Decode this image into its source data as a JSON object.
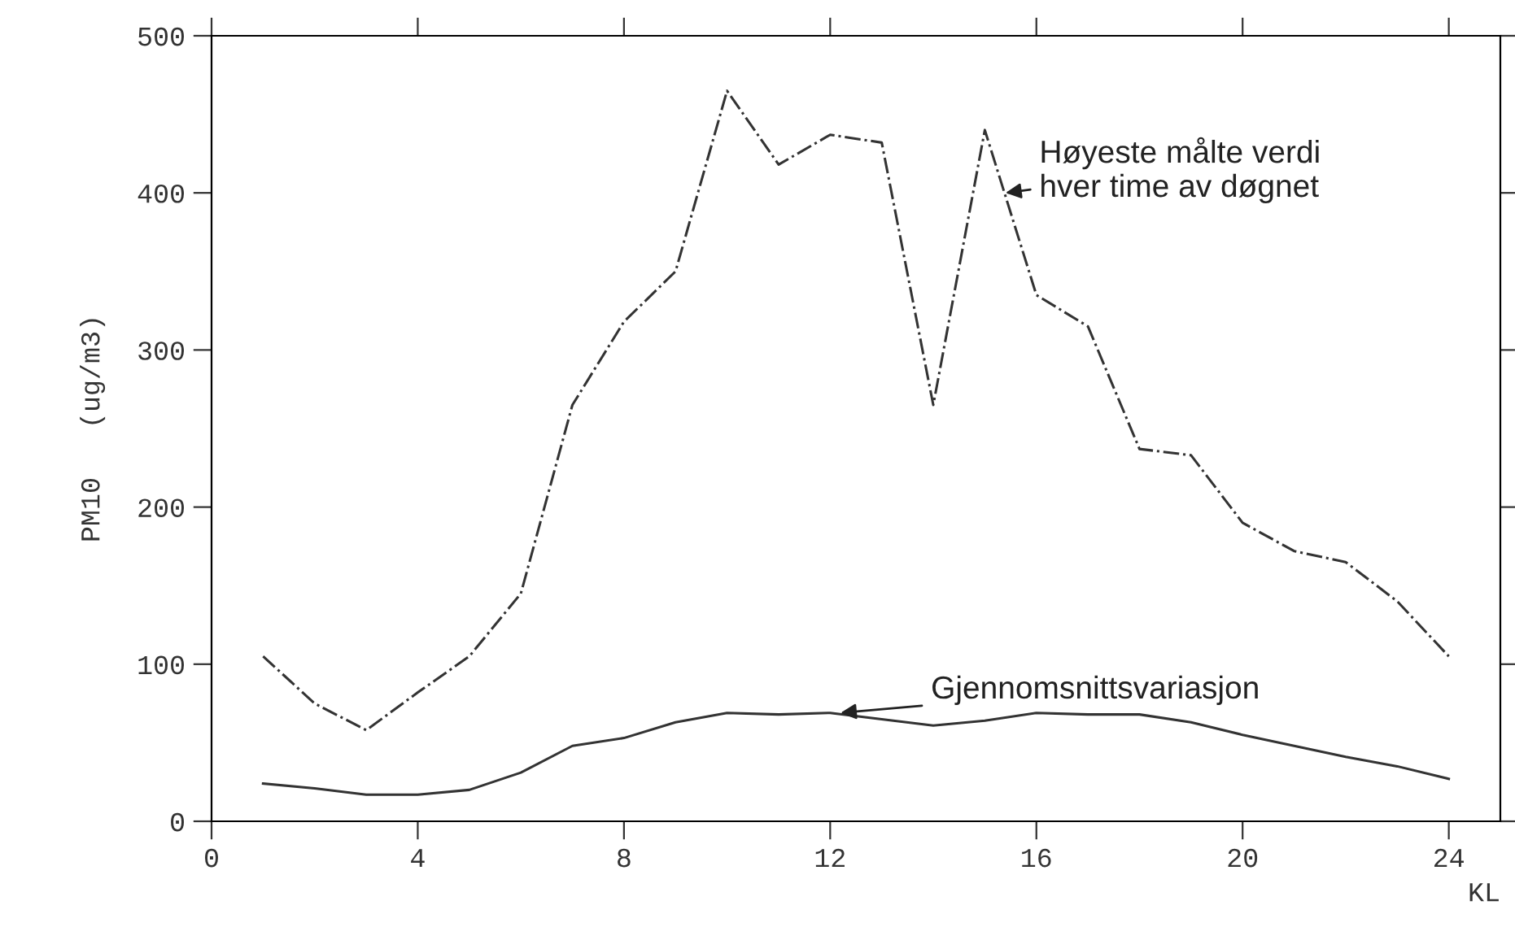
{
  "chart_data": {
    "type": "line",
    "xlabel": "KL",
    "ylabel": "PM10   (ug/m3)",
    "x": [
      1,
      2,
      3,
      4,
      5,
      6,
      7,
      8,
      9,
      10,
      11,
      12,
      13,
      14,
      15,
      16,
      17,
      18,
      19,
      20,
      21,
      22,
      23,
      24
    ],
    "series": [
      {
        "color": "#333333",
        "line_style": "dashdot",
        "values": [
          105,
          75,
          58,
          82,
          105,
          145,
          265,
          318,
          350,
          465,
          418,
          437,
          432,
          265,
          440,
          335,
          315,
          237,
          233,
          190,
          172,
          165,
          140,
          105
        ]
      },
      {
        "color": "#333333",
        "line_style": "solid",
        "values": [
          24,
          21,
          17,
          17,
          20,
          31,
          48,
          53,
          63,
          69,
          68,
          69,
          65,
          61,
          64,
          69,
          68,
          68,
          63,
          55,
          48,
          41,
          35,
          27
        ]
      }
    ],
    "annotations": [
      {
        "text": "Høyeste målte verdi\nhver time av døgnet",
        "x": 15.4,
        "y": 400
      },
      {
        "text": "Gjennomsnittsvariasjon",
        "x": 12.2,
        "y": 69
      }
    ],
    "xlim": [
      0,
      25
    ],
    "ylim": [
      0,
      500
    ],
    "xticks": [
      0,
      4,
      8,
      12,
      16,
      20,
      24
    ],
    "yticks": [
      0,
      100,
      200,
      300,
      400,
      500
    ],
    "grid": false,
    "legend": false,
    "marker": "none"
  }
}
